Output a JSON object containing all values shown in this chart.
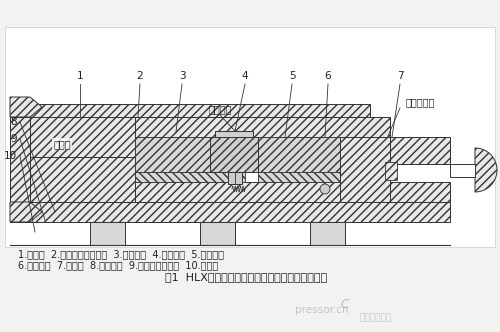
{
  "bg_color": "#ffffff",
  "fig_bg": "#f2f2f2",
  "title": "图1  HLX型液压紧固拉伸部件（紧固未泄压状态）",
  "legend_line1": "1.螺纹套  2.定位环（调整环）  3.紧定螺钉  4.锁紧螺母  5.压力活塞",
  "legend_line2": "6.承压胶圈  7.扩张体  8.连接弹簧  9.止推环（两瓣）  10.活塞杆",
  "annotation_zhizitou": "十字头",
  "annotation_zhikoututai": "止口凸台",
  "annotation_gaoyaoyouzhukou": "高压油注口",
  "watermark_cn": "中国压缩机网",
  "watermark_en": "pressor.cn",
  "hatch_color": "#555555",
  "line_color": "#333333",
  "text_color": "#222222",
  "num_labels_top": [
    [
      "1",
      80,
      18,
      75,
      57
    ],
    [
      "2",
      140,
      18,
      130,
      57
    ],
    [
      "3",
      175,
      18,
      168,
      57
    ],
    [
      "4",
      238,
      18,
      228,
      63
    ],
    [
      "5",
      288,
      18,
      285,
      63
    ],
    [
      "6",
      320,
      18,
      318,
      63
    ],
    [
      "7",
      395,
      18,
      388,
      63
    ]
  ],
  "num_labels_left": [
    [
      "8",
      18,
      130,
      55,
      135
    ],
    [
      "9",
      18,
      155,
      45,
      158
    ],
    [
      "10",
      18,
      172,
      45,
      170
    ]
  ]
}
